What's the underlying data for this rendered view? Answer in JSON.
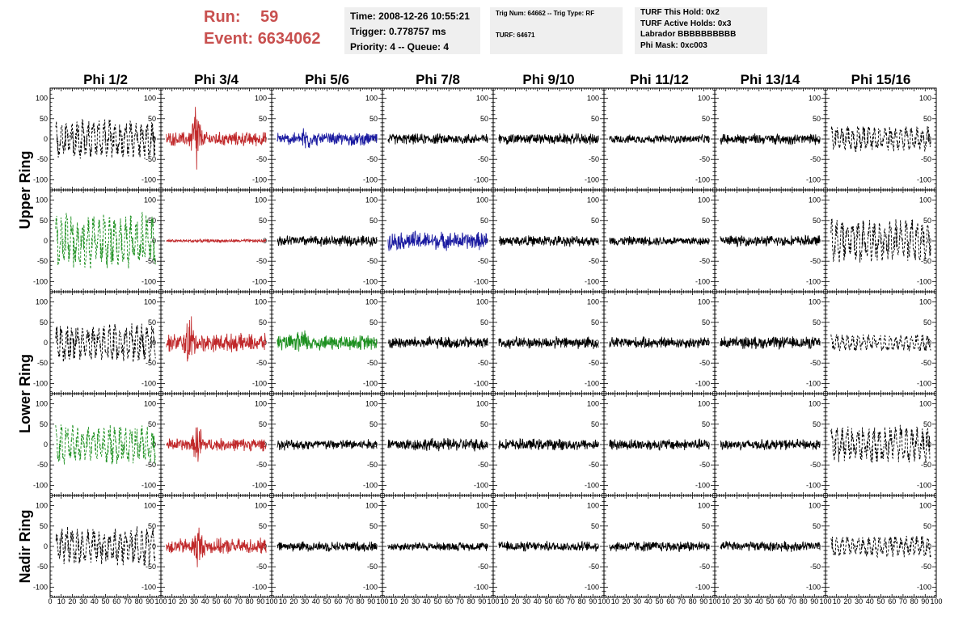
{
  "header": {
    "run_label": "Run:",
    "run_value": "59",
    "event_label": "Event:",
    "event_value": "6634062",
    "time_line": "Time: 2008-12-26 10:55:21",
    "trigger_line": "Trigger: 0.778757 ms",
    "priority_line": "Priority: 4 -- Queue: 4",
    "trig_num_line": "Trig Num: 64662 -- Trig Type: RF",
    "turf_line": "TURF: 64671",
    "turf_hold_line": "TURF This Hold: 0x2",
    "turf_active_line": "TURF Active Holds: 0x3",
    "labrador_line": "Labrador BBBBBBBBBB",
    "phi_mask_line": "Phi Mask: 0xc003"
  },
  "chart_data": {
    "type": "line",
    "columns": [
      "Phi 1/2",
      "Phi 3/4",
      "Phi 5/6",
      "Phi 7/8",
      "Phi 9/10",
      "Phi 11/12",
      "Phi 13/14",
      "Phi 15/16"
    ],
    "rows": [
      "Upper Ring",
      "Lower Ring",
      "Nadir Ring"
    ],
    "xlim": [
      0,
      100
    ],
    "ylim": [
      -125,
      125
    ],
    "x_ticks": [
      "0",
      "10",
      "20",
      "30",
      "40",
      "50",
      "60",
      "70",
      "80",
      "90",
      "100"
    ],
    "y_ticks": [
      "100",
      "50",
      "0",
      "-50",
      "-100"
    ],
    "colors": {
      "black": "#000000",
      "red": "#c0282a",
      "blue": "#1a1aa0",
      "green": "#1d9020"
    },
    "panels": [
      [
        {
          "color": "black",
          "style": "dashed",
          "amp": 45,
          "noise": 0.7,
          "spike": 0
        },
        {
          "color": "red",
          "style": "solid",
          "amp": 20,
          "noise": 0.6,
          "spike": 130
        },
        {
          "color": "blue",
          "style": "solid",
          "amp": 18,
          "noise": 0.6,
          "spike": 45
        },
        {
          "color": "black",
          "style": "solid",
          "amp": 15,
          "noise": 0.6,
          "spike": 0
        },
        {
          "color": "black",
          "style": "solid",
          "amp": 15,
          "noise": 0.6,
          "spike": 0
        },
        {
          "color": "black",
          "style": "solid",
          "amp": 12,
          "noise": 0.6,
          "spike": 0
        },
        {
          "color": "black",
          "style": "solid",
          "amp": 15,
          "noise": 0.6,
          "spike": 0
        },
        {
          "color": "black",
          "style": "dashed",
          "amp": 30,
          "noise": 0.7,
          "spike": 0
        }
      ],
      [
        {
          "color": "green",
          "style": "dashed",
          "amp": 65,
          "noise": 0.8,
          "spike": 0
        },
        {
          "color": "red",
          "style": "solid",
          "amp": 5,
          "noise": 0.5,
          "spike": 0
        },
        {
          "color": "black",
          "style": "solid",
          "amp": 15,
          "noise": 0.6,
          "spike": 0
        },
        {
          "color": "blue",
          "style": "solid",
          "amp": 25,
          "noise": 0.6,
          "spike": 30
        },
        {
          "color": "black",
          "style": "solid",
          "amp": 15,
          "noise": 0.6,
          "spike": 0
        },
        {
          "color": "black",
          "style": "solid",
          "amp": 13,
          "noise": 0.6,
          "spike": 0
        },
        {
          "color": "black",
          "style": "solid",
          "amp": 15,
          "noise": 0.6,
          "spike": 0
        },
        {
          "color": "black",
          "style": "dashed",
          "amp": 50,
          "noise": 0.7,
          "spike": 0
        }
      ],
      [
        {
          "color": "black",
          "style": "dashed",
          "amp": 45,
          "noise": 0.7,
          "spike": 0
        },
        {
          "color": "red",
          "style": "solid",
          "amp": 25,
          "noise": 0.6,
          "spike": 90
        },
        {
          "color": "green",
          "style": "solid",
          "amp": 22,
          "noise": 0.6,
          "spike": 50
        },
        {
          "color": "black",
          "style": "solid",
          "amp": 17,
          "noise": 0.6,
          "spike": 0
        },
        {
          "color": "black",
          "style": "solid",
          "amp": 17,
          "noise": 0.6,
          "spike": 0
        },
        {
          "color": "black",
          "style": "solid",
          "amp": 16,
          "noise": 0.6,
          "spike": 0
        },
        {
          "color": "black",
          "style": "solid",
          "amp": 17,
          "noise": 0.6,
          "spike": 0
        },
        {
          "color": "black",
          "style": "dashed",
          "amp": 20,
          "noise": 0.6,
          "spike": 0
        }
      ],
      [
        {
          "color": "green",
          "style": "dashed",
          "amp": 45,
          "noise": 0.7,
          "spike": 0
        },
        {
          "color": "red",
          "style": "solid",
          "amp": 18,
          "noise": 0.6,
          "spike": 70
        },
        {
          "color": "black",
          "style": "solid",
          "amp": 15,
          "noise": 0.6,
          "spike": 0
        },
        {
          "color": "black",
          "style": "solid",
          "amp": 18,
          "noise": 0.6,
          "spike": 0
        },
        {
          "color": "black",
          "style": "solid",
          "amp": 16,
          "noise": 0.6,
          "spike": 0
        },
        {
          "color": "black",
          "style": "solid",
          "amp": 16,
          "noise": 0.6,
          "spike": 0
        },
        {
          "color": "black",
          "style": "solid",
          "amp": 15,
          "noise": 0.6,
          "spike": 0
        },
        {
          "color": "black",
          "style": "dashed",
          "amp": 45,
          "noise": 0.7,
          "spike": 0
        }
      ],
      [
        {
          "color": "black",
          "style": "dashed",
          "amp": 45,
          "noise": 0.7,
          "spike": 0
        },
        {
          "color": "red",
          "style": "solid",
          "amp": 22,
          "noise": 0.6,
          "spike": 70
        },
        {
          "color": "black",
          "style": "solid",
          "amp": 14,
          "noise": 0.6,
          "spike": 0
        },
        {
          "color": "black",
          "style": "solid",
          "amp": 12,
          "noise": 0.6,
          "spike": 0
        },
        {
          "color": "black",
          "style": "solid",
          "amp": 14,
          "noise": 0.6,
          "spike": 0
        },
        {
          "color": "black",
          "style": "solid",
          "amp": 15,
          "noise": 0.6,
          "spike": 0
        },
        {
          "color": "black",
          "style": "solid",
          "amp": 14,
          "noise": 0.6,
          "spike": 0
        },
        {
          "color": "black",
          "style": "dashed",
          "amp": 25,
          "noise": 0.6,
          "spike": 0
        }
      ]
    ]
  }
}
